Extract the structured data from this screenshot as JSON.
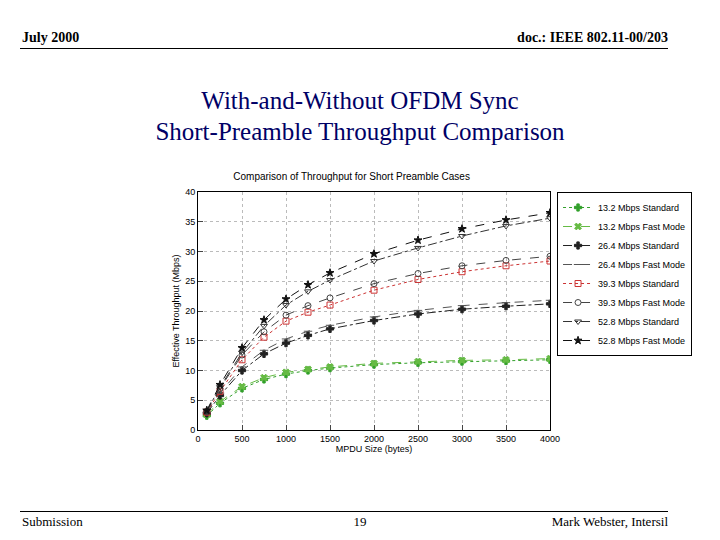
{
  "header": {
    "left": "July 2000",
    "right": "doc.: IEEE 802.11-00/203"
  },
  "slide_title": [
    "With-and-Without OFDM Sync",
    "Short-Preamble Throughput Comparison"
  ],
  "footer": {
    "left": "Submission",
    "center": "19",
    "right": "Mark Webster, Intersil"
  },
  "chart_data": {
    "type": "line",
    "title": "Comparison of Throughput for Short Preamble Cases",
    "x_label": "MPDU Size (bytes)",
    "y_label": "Effective Throughput (Mbps)",
    "x": [
      100,
      250,
      500,
      750,
      1000,
      1250,
      1500,
      2000,
      2500,
      3000,
      3500,
      4000
    ],
    "xlim": [
      0,
      4000
    ],
    "xticks": [
      0,
      500,
      1000,
      1500,
      2000,
      2500,
      3000,
      3500,
      4000
    ],
    "ylim": [
      0,
      40
    ],
    "yticks": [
      0,
      5,
      10,
      15,
      20,
      25,
      30,
      35,
      40
    ],
    "grid": true,
    "legend": "right",
    "series": [
      {
        "name": "13.2 Mbps Standard",
        "color": "#33a02c",
        "marker": "cross",
        "line_style": "dot",
        "values": [
          2.4,
          4.5,
          7.0,
          8.5,
          9.4,
          10.0,
          10.4,
          11.0,
          11.3,
          11.5,
          11.6,
          11.8
        ]
      },
      {
        "name": "13.2 Mbps Fast Mode",
        "color": "#66bb44",
        "marker": "x",
        "line_style": "dash",
        "values": [
          2.6,
          4.8,
          7.3,
          8.8,
          9.7,
          10.2,
          10.6,
          11.2,
          11.5,
          11.7,
          11.8,
          12.0
        ]
      },
      {
        "name": "26.4 Mbps Standard",
        "color": "#222222",
        "marker": "cross",
        "line_style": "dashdot",
        "values": [
          2.8,
          5.8,
          10.0,
          12.8,
          14.6,
          15.9,
          17.0,
          18.4,
          19.5,
          20.3,
          20.8,
          21.2
        ]
      },
      {
        "name": "26.4 Mbps Fast Mode",
        "color": "#555555",
        "marker": "line-ew",
        "line_style": "dash",
        "values": [
          3.0,
          6.2,
          10.6,
          13.4,
          15.3,
          16.6,
          17.6,
          19.0,
          20.1,
          20.9,
          21.4,
          21.8
        ]
      },
      {
        "name": "39.3 Mbps Standard",
        "color": "#cc3333",
        "marker": "square-open",
        "line_style": "dot",
        "values": [
          3.0,
          6.5,
          11.8,
          15.6,
          18.3,
          19.8,
          21.0,
          23.5,
          25.3,
          26.6,
          27.6,
          28.4
        ]
      },
      {
        "name": "39.3 Mbps Fast Mode",
        "color": "#444444",
        "marker": "circle-open",
        "line_style": "dash",
        "values": [
          3.1,
          7.0,
          12.6,
          16.5,
          19.3,
          20.9,
          22.2,
          24.6,
          26.3,
          27.6,
          28.5,
          29.2
        ]
      },
      {
        "name": "52.8 Mbps Standard",
        "color": "#333333",
        "marker": "triangle-down-open",
        "line_style": "dashdot",
        "values": [
          3.2,
          7.2,
          13.0,
          17.5,
          21.0,
          23.3,
          25.2,
          28.4,
          30.6,
          32.6,
          34.3,
          35.6
        ]
      },
      {
        "name": "52.8 Mbps Fast Mode",
        "color": "#111111",
        "marker": "star",
        "line_style": "dash",
        "values": [
          3.3,
          7.6,
          13.8,
          18.5,
          22.0,
          24.4,
          26.4,
          29.6,
          31.9,
          33.8,
          35.3,
          36.5
        ]
      }
    ]
  }
}
